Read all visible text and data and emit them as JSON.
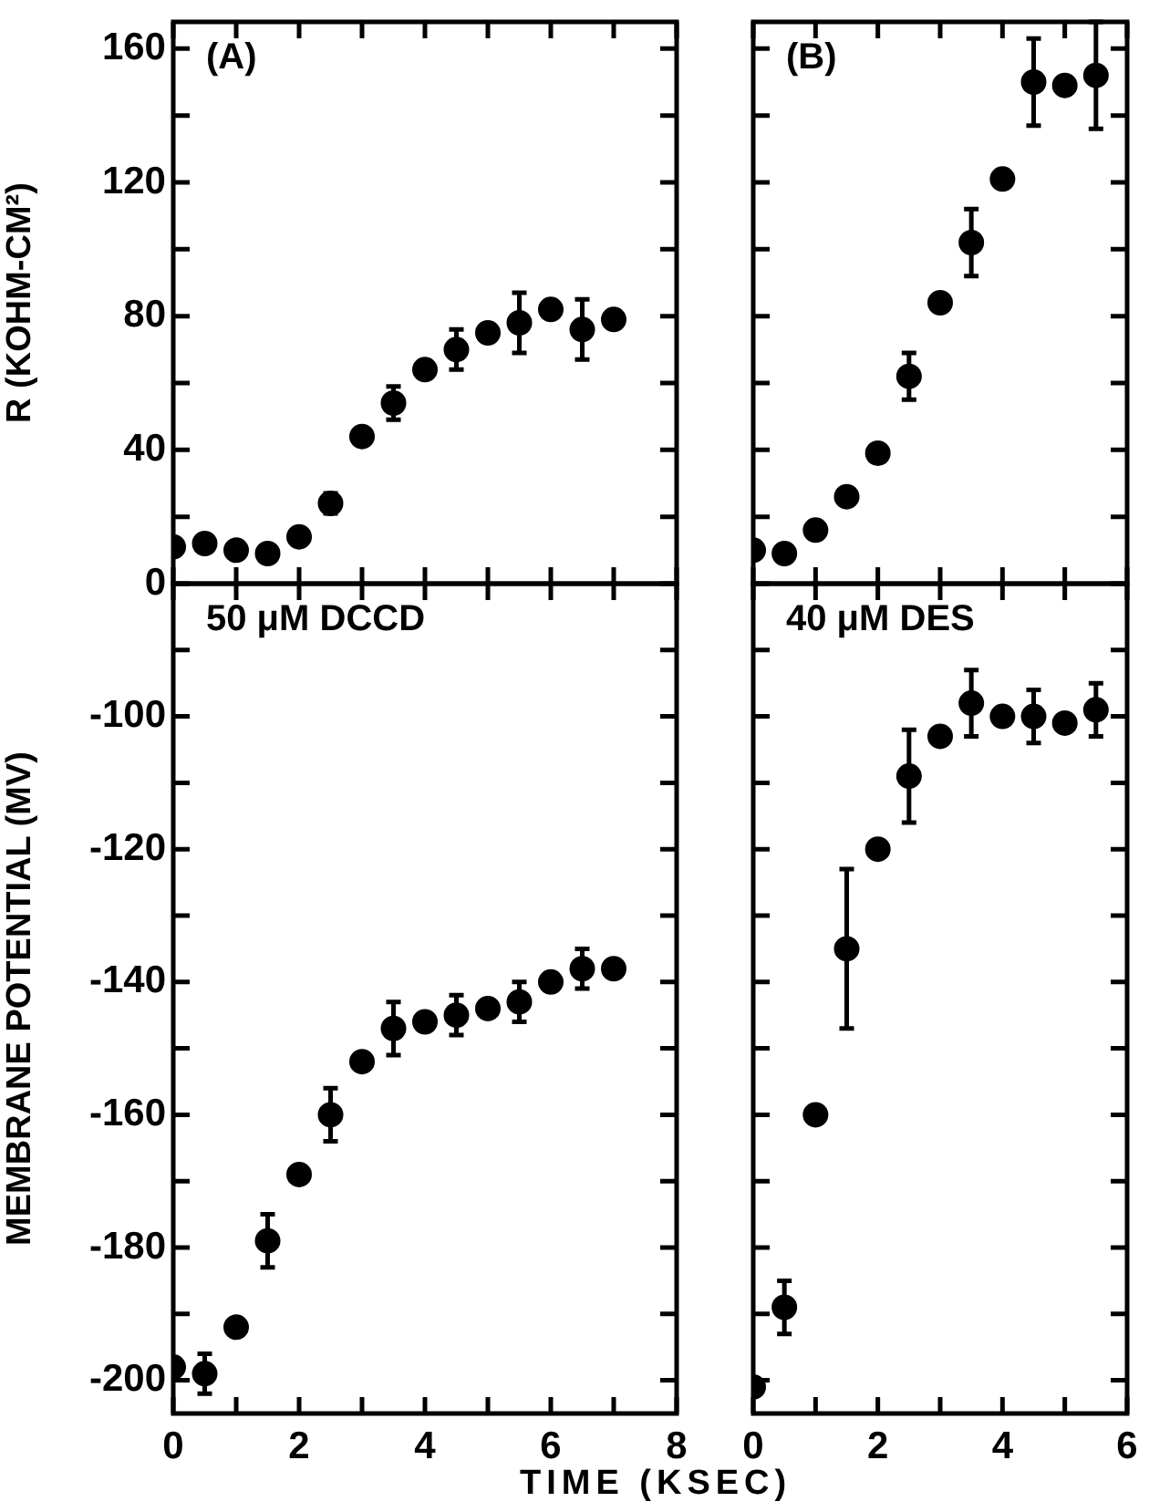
{
  "chart_data": [
    {
      "type": "scatter",
      "ylabel": "R (KOHM-CM²)",
      "annotations": [
        "(A)"
      ],
      "color": "#000000",
      "marker": "circle",
      "tick_labels": "y",
      "x": [
        0,
        0.5,
        1,
        1.5,
        2,
        2.5,
        3,
        3.5,
        4,
        4.5,
        5,
        5.5,
        6,
        6.5,
        7
      ],
      "values": [
        11,
        12,
        10,
        9,
        14,
        24,
        44,
        54,
        64,
        70,
        75,
        78,
        82,
        76,
        79
      ],
      "errors": [
        null,
        null,
        null,
        null,
        null,
        3,
        null,
        5,
        null,
        6,
        null,
        9,
        null,
        9,
        null
      ],
      "xlim": [
        0,
        8
      ],
      "xticks": [
        0,
        1,
        2,
        3,
        4,
        5,
        6,
        7,
        8
      ],
      "ylim": [
        0,
        168
      ],
      "yticks": [
        0,
        {
          "value": 20,
          "label": null
        },
        40,
        {
          "value": 60,
          "label": null
        },
        80,
        {
          "value": 100,
          "label": null
        },
        120,
        {
          "value": 140,
          "label": null
        },
        160
      ]
    },
    {
      "type": "scatter",
      "annotations": [
        "(B)"
      ],
      "color": "#000000",
      "marker": "circle",
      "tick_labels": false,
      "x": [
        0,
        0.5,
        1,
        1.5,
        2,
        2.5,
        3,
        3.5,
        4,
        4.5,
        5,
        5.5
      ],
      "values": [
        10,
        9,
        16,
        26,
        39,
        62,
        84,
        102,
        121,
        150,
        149,
        152
      ],
      "errors": [
        null,
        null,
        null,
        null,
        null,
        7,
        null,
        10,
        null,
        13,
        null,
        16
      ],
      "xlim": [
        0,
        6
      ],
      "xticks": [
        0,
        1,
        2,
        3,
        4,
        5,
        6
      ],
      "ylim": [
        0,
        168
      ],
      "yticks": [
        0,
        20,
        40,
        60,
        80,
        100,
        120,
        140,
        160
      ]
    },
    {
      "type": "scatter",
      "ylabel": "MEMBRANE POTENTIAL (MV)",
      "xlabel": "TIME (KSEC)",
      "annotations": [
        "50 μM DCCD"
      ],
      "color": "#000000",
      "marker": "circle",
      "x": [
        0,
        0.5,
        1,
        1.5,
        2,
        2.5,
        3,
        3.5,
        4,
        4.5,
        5,
        5.5,
        6,
        6.5,
        7
      ],
      "values": [
        -198,
        -199,
        -192,
        -179,
        -169,
        -160,
        -152,
        -147,
        -146,
        -145,
        -144,
        -143,
        -140,
        -138,
        -138
      ],
      "errors": [
        null,
        3,
        null,
        4,
        null,
        4,
        null,
        4,
        null,
        3,
        null,
        3,
        null,
        3,
        null
      ],
      "xlim": [
        0,
        8
      ],
      "xticks": [
        0,
        {
          "value": 1,
          "label": null
        },
        2,
        {
          "value": 3,
          "label": null
        },
        4,
        {
          "value": 5,
          "label": null
        },
        6,
        {
          "value": 7,
          "label": null
        },
        8
      ],
      "ylim": [
        -205,
        -80
      ],
      "yticks": [
        -200,
        {
          "value": -190,
          "label": null
        },
        -180,
        {
          "value": -170,
          "label": null
        },
        -160,
        {
          "value": -150,
          "label": null
        },
        -140,
        {
          "value": -130,
          "label": null
        },
        -120,
        {
          "value": -110,
          "label": null
        },
        -100,
        {
          "value": -90,
          "label": null
        }
      ]
    },
    {
      "type": "scatter",
      "annotations": [
        "40 μM DES"
      ],
      "color": "#000000",
      "marker": "circle",
      "tick_labels": "x",
      "x": [
        0,
        0.5,
        1,
        1.5,
        2,
        2.5,
        3,
        3.5,
        4,
        4.5,
        5,
        5.5
      ],
      "values": [
        -201,
        -189,
        -160,
        -135,
        -120,
        -109,
        -103,
        -98,
        -100,
        -100,
        -101,
        -99
      ],
      "errors": [
        null,
        4,
        null,
        12,
        null,
        7,
        null,
        5,
        null,
        4,
        null,
        4
      ],
      "xlim": [
        0,
        6
      ],
      "xticks": [
        0,
        {
          "value": 1,
          "label": null
        },
        2,
        {
          "value": 3,
          "label": null
        },
        4,
        {
          "value": 5,
          "label": null
        },
        6
      ],
      "ylim": [
        -205,
        -80
      ],
      "yticks": [
        -200,
        -190,
        -180,
        -170,
        -160,
        -150,
        -140,
        -130,
        -120,
        -110,
        -100,
        -90
      ]
    }
  ]
}
